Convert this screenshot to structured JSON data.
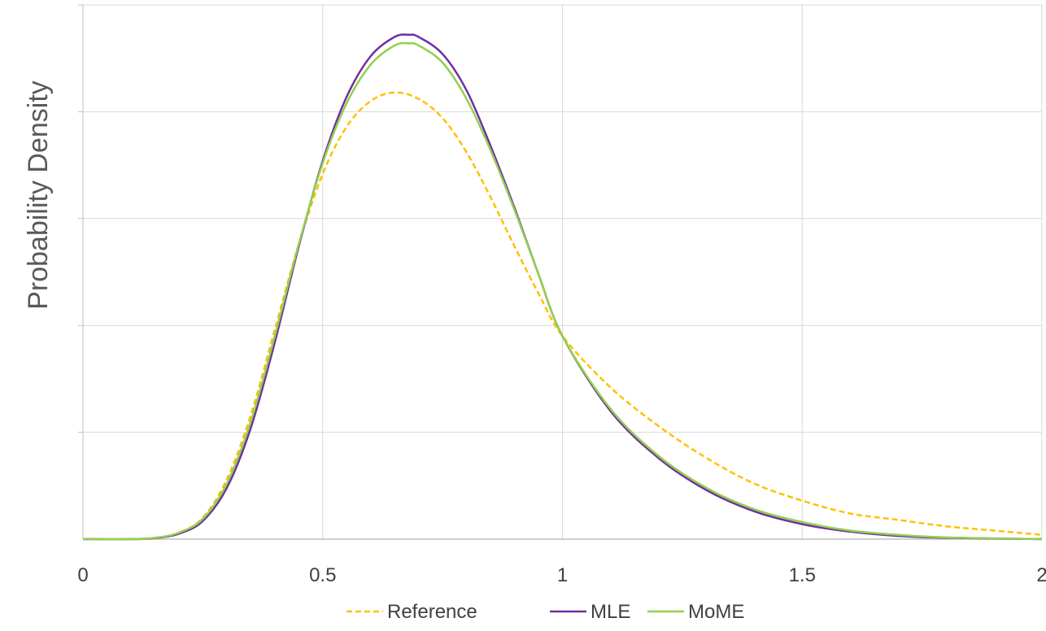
{
  "chart_data": {
    "type": "line",
    "title": "",
    "xlabel": "",
    "ylabel": "Probability Density",
    "xlim": [
      0,
      2
    ],
    "ylim": [
      0,
      2.5
    ],
    "x_ticks": [
      0,
      0.5,
      1,
      1.5,
      2
    ],
    "x_tick_labels": [
      "0",
      "0.5",
      "1",
      "1.5",
      "2"
    ],
    "y_gridlines": [
      0,
      0.5,
      1,
      1.5,
      2,
      2.5
    ],
    "y_tick_labels_shown": false,
    "grid": true,
    "legend_position": "bottom",
    "series": [
      {
        "name": "Reference",
        "style": "dashed",
        "color": "#FFC000",
        "x": [
          0,
          0.1,
          0.15,
          0.2,
          0.25,
          0.3,
          0.35,
          0.4,
          0.45,
          0.5,
          0.55,
          0.6,
          0.65,
          0.7,
          0.75,
          0.8,
          0.85,
          0.9,
          0.95,
          1.0,
          1.1,
          1.2,
          1.3,
          1.4,
          1.5,
          1.6,
          1.7,
          1.8,
          1.9,
          2.0
        ],
        "y": [
          0,
          0,
          0.005,
          0.03,
          0.1,
          0.28,
          0.58,
          0.98,
          1.38,
          1.71,
          1.93,
          2.05,
          2.09,
          2.06,
          1.97,
          1.81,
          1.6,
          1.37,
          1.15,
          0.95,
          0.71,
          0.53,
          0.38,
          0.26,
          0.18,
          0.12,
          0.09,
          0.06,
          0.04,
          0.02
        ]
      },
      {
        "name": "MLE",
        "style": "solid",
        "color": "#7030A0",
        "x": [
          0,
          0.1,
          0.15,
          0.2,
          0.25,
          0.3,
          0.35,
          0.4,
          0.45,
          0.5,
          0.55,
          0.6,
          0.65,
          0.68,
          0.7,
          0.75,
          0.8,
          0.85,
          0.9,
          0.95,
          1.0,
          1.1,
          1.2,
          1.3,
          1.4,
          1.5,
          1.6,
          1.7,
          1.8,
          2.0
        ],
        "y": [
          0,
          0,
          0.005,
          0.025,
          0.085,
          0.24,
          0.52,
          0.92,
          1.37,
          1.77,
          2.07,
          2.26,
          2.35,
          2.36,
          2.35,
          2.27,
          2.1,
          1.84,
          1.55,
          1.24,
          0.95,
          0.6,
          0.38,
          0.23,
          0.13,
          0.07,
          0.035,
          0.015,
          0.006,
          0
        ]
      },
      {
        "name": "MoME",
        "style": "solid",
        "color": "#92D050",
        "x": [
          0,
          0.1,
          0.15,
          0.2,
          0.25,
          0.3,
          0.35,
          0.4,
          0.45,
          0.5,
          0.55,
          0.6,
          0.65,
          0.68,
          0.7,
          0.75,
          0.8,
          0.85,
          0.9,
          0.95,
          1.0,
          1.1,
          1.2,
          1.3,
          1.4,
          1.5,
          1.6,
          1.7,
          1.8,
          2.0
        ],
        "y": [
          0,
          0,
          0.006,
          0.03,
          0.095,
          0.26,
          0.55,
          0.95,
          1.38,
          1.76,
          2.04,
          2.22,
          2.31,
          2.32,
          2.31,
          2.23,
          2.06,
          1.82,
          1.54,
          1.24,
          0.95,
          0.61,
          0.39,
          0.24,
          0.14,
          0.08,
          0.04,
          0.02,
          0.008,
          0
        ]
      }
    ]
  }
}
